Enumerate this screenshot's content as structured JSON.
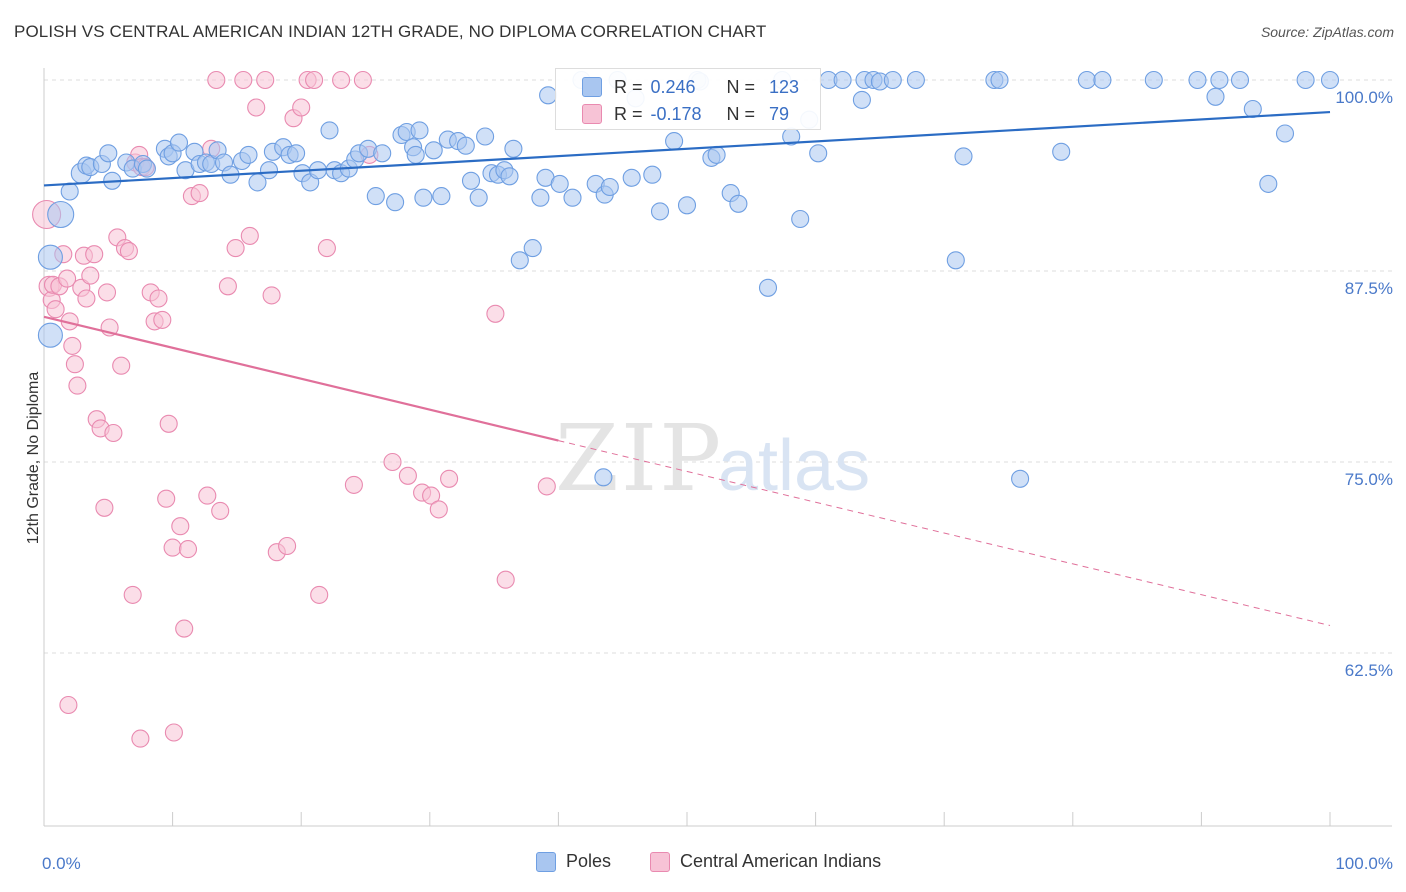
{
  "title": "POLISH VS CENTRAL AMERICAN INDIAN 12TH GRADE, NO DIPLOMA CORRELATION CHART",
  "source": "Source: ZipAtlas.com",
  "watermark": {
    "zip": "ZIP",
    "atlas": "atlas"
  },
  "colors": {
    "blue": "#6f9fe2",
    "blue_fill": "#a9c6f0",
    "blue_line": "#2b6cc4",
    "pink": "#e98ab0",
    "pink_fill": "#f7c3d6",
    "pink_line": "#e0709a",
    "tick_text": "#4a79c9"
  },
  "stats": {
    "rows": [
      {
        "r_label": "R =",
        "r_value": "0.246",
        "n_label": "N =",
        "n_value": "123",
        "color": "blue"
      },
      {
        "r_label": "R =",
        "r_value": "-0.178",
        "n_label": "N =",
        "n_value": "79",
        "color": "pink"
      }
    ]
  },
  "legend": {
    "items": [
      {
        "label": "Poles",
        "color": "blue"
      },
      {
        "label": "Central American Indians",
        "color": "pink"
      }
    ]
  },
  "chart_data": {
    "type": "scatter",
    "title": "POLISH VS CENTRAL AMERICAN INDIAN 12TH GRADE, NO DIPLOMA CORRELATION CHART",
    "xlabel": "",
    "ylabel": "12th Grade, No Diploma",
    "xlim": [
      0,
      100
    ],
    "ylim": [
      50,
      100
    ],
    "x_tick_labels": [
      "0.0%",
      "100.0%"
    ],
    "y_ticks": [
      100,
      87.5,
      75,
      62.5
    ],
    "y_tick_labels": [
      "100.0%",
      "87.5%",
      "75.0%",
      "62.5%"
    ],
    "grid": true,
    "legend_position": "bottom-center",
    "series": [
      {
        "name": "Poles",
        "color": "blue",
        "r": 0.246,
        "n": 123,
        "trend": {
          "x": [
            0,
            100
          ],
          "y": [
            93.1,
            97.9
          ]
        },
        "points": [
          [
            0.5,
            88.4
          ],
          [
            0.5,
            83.3
          ],
          [
            1.3,
            91.2
          ],
          [
            2.0,
            92.7
          ],
          [
            2.9,
            93.9
          ],
          [
            3.3,
            94.4
          ],
          [
            3.6,
            94.3
          ],
          [
            4.5,
            94.5
          ],
          [
            5.0,
            95.2
          ],
          [
            5.3,
            93.4
          ],
          [
            6.4,
            94.6
          ],
          [
            6.9,
            94.2
          ],
          [
            7.7,
            94.5
          ],
          [
            8.0,
            94.2
          ],
          [
            9.4,
            95.5
          ],
          [
            9.7,
            95.0
          ],
          [
            10.0,
            95.2
          ],
          [
            10.5,
            95.9
          ],
          [
            11.0,
            94.1
          ],
          [
            11.7,
            95.3
          ],
          [
            12.1,
            94.5
          ],
          [
            12.6,
            94.6
          ],
          [
            13.0,
            94.5
          ],
          [
            13.5,
            95.4
          ],
          [
            14.0,
            94.6
          ],
          [
            14.5,
            93.8
          ],
          [
            15.4,
            94.7
          ],
          [
            15.9,
            95.1
          ],
          [
            16.6,
            93.3
          ],
          [
            17.5,
            94.1
          ],
          [
            17.8,
            95.3
          ],
          [
            18.6,
            95.6
          ],
          [
            19.1,
            95.1
          ],
          [
            19.6,
            95.2
          ],
          [
            20.1,
            93.9
          ],
          [
            20.7,
            93.3
          ],
          [
            21.3,
            94.1
          ],
          [
            22.2,
            96.7
          ],
          [
            22.6,
            94.1
          ],
          [
            23.1,
            93.9
          ],
          [
            23.7,
            94.2
          ],
          [
            24.2,
            94.8
          ],
          [
            24.5,
            95.2
          ],
          [
            25.2,
            95.5
          ],
          [
            25.8,
            92.4
          ],
          [
            26.3,
            95.2
          ],
          [
            27.3,
            92.0
          ],
          [
            27.8,
            96.4
          ],
          [
            28.2,
            96.6
          ],
          [
            28.7,
            95.6
          ],
          [
            28.9,
            95.1
          ],
          [
            29.2,
            96.7
          ],
          [
            29.5,
            92.3
          ],
          [
            30.3,
            95.4
          ],
          [
            30.9,
            92.4
          ],
          [
            31.4,
            96.1
          ],
          [
            32.2,
            96.0
          ],
          [
            32.8,
            95.7
          ],
          [
            33.2,
            93.4
          ],
          [
            33.8,
            92.3
          ],
          [
            34.3,
            96.3
          ],
          [
            34.8,
            93.9
          ],
          [
            35.3,
            93.8
          ],
          [
            35.8,
            94.1
          ],
          [
            36.2,
            93.7
          ],
          [
            36.5,
            95.5
          ],
          [
            37.0,
            88.2
          ],
          [
            38.0,
            89.0
          ],
          [
            38.6,
            92.3
          ],
          [
            39.0,
            93.6
          ],
          [
            39.2,
            99.0
          ],
          [
            40.1,
            93.2
          ],
          [
            41.1,
            92.3
          ],
          [
            41.8,
            100.0
          ],
          [
            42.9,
            93.2
          ],
          [
            43.6,
            92.5
          ],
          [
            44.0,
            93.0
          ],
          [
            44.6,
            100.0
          ],
          [
            45.7,
            93.6
          ],
          [
            46.0,
            98.8
          ],
          [
            47.3,
            93.8
          ],
          [
            47.9,
            91.4
          ],
          [
            49.0,
            96.0
          ],
          [
            50.0,
            91.8
          ],
          [
            50.8,
            100.0
          ],
          [
            51.0,
            99.9
          ],
          [
            51.9,
            94.9
          ],
          [
            52.3,
            95.1
          ],
          [
            53.4,
            92.6
          ],
          [
            54.0,
            91.9
          ],
          [
            56.3,
            86.4
          ],
          [
            57.4,
            100.0
          ],
          [
            58.1,
            96.3
          ],
          [
            58.8,
            90.9
          ],
          [
            59.5,
            97.4
          ],
          [
            60.2,
            95.2
          ],
          [
            61.0,
            100.0
          ],
          [
            62.1,
            100.0
          ],
          [
            63.6,
            98.7
          ],
          [
            63.8,
            100.0
          ],
          [
            64.5,
            100.0
          ],
          [
            65.0,
            99.9
          ],
          [
            66.0,
            100.0
          ],
          [
            67.8,
            100.0
          ],
          [
            71.5,
            95.0
          ],
          [
            73.9,
            100.0
          ],
          [
            74.3,
            100.0
          ],
          [
            79.1,
            95.3
          ],
          [
            81.1,
            100.0
          ],
          [
            82.3,
            100.0
          ],
          [
            86.3,
            100.0
          ],
          [
            89.7,
            100.0
          ],
          [
            91.1,
            98.9
          ],
          [
            91.4,
            100.0
          ],
          [
            93.0,
            100.0
          ],
          [
            94.0,
            98.1
          ],
          [
            95.2,
            93.2
          ],
          [
            96.5,
            96.5
          ],
          [
            98.1,
            100.0
          ],
          [
            100.0,
            100.0
          ],
          [
            43.5,
            74.0
          ],
          [
            75.9,
            73.9
          ],
          [
            70.9,
            88.2
          ]
        ]
      },
      {
        "name": "Central American Indians",
        "color": "pink",
        "r": -0.178,
        "n": 79,
        "trend": {
          "x": [
            0,
            40
          ],
          "y": [
            84.5,
            76.4
          ]
        },
        "trend_dashed": {
          "x": [
            40,
            100
          ],
          "y": [
            76.4,
            64.3
          ]
        },
        "points": [
          [
            0.2,
            91.2
          ],
          [
            0.4,
            86.5
          ],
          [
            0.6,
            85.6
          ],
          [
            0.7,
            86.6
          ],
          [
            0.9,
            85.0
          ],
          [
            1.2,
            86.5
          ],
          [
            1.5,
            88.6
          ],
          [
            1.8,
            87.0
          ],
          [
            2.0,
            84.2
          ],
          [
            2.2,
            82.6
          ],
          [
            2.4,
            81.4
          ],
          [
            2.6,
            80.0
          ],
          [
            2.9,
            86.4
          ],
          [
            3.1,
            88.5
          ],
          [
            3.3,
            85.7
          ],
          [
            3.6,
            87.2
          ],
          [
            3.9,
            88.6
          ],
          [
            4.1,
            77.8
          ],
          [
            4.4,
            77.2
          ],
          [
            4.7,
            72.0
          ],
          [
            4.9,
            86.1
          ],
          [
            5.1,
            83.8
          ],
          [
            5.4,
            76.9
          ],
          [
            5.7,
            89.7
          ],
          [
            6.0,
            81.3
          ],
          [
            6.3,
            89.0
          ],
          [
            6.6,
            88.8
          ],
          [
            6.9,
            66.3
          ],
          [
            7.1,
            94.6
          ],
          [
            7.4,
            95.1
          ],
          [
            7.6,
            94.3
          ],
          [
            7.9,
            94.3
          ],
          [
            8.3,
            86.1
          ],
          [
            8.6,
            84.2
          ],
          [
            8.9,
            85.7
          ],
          [
            9.2,
            84.3
          ],
          [
            9.5,
            72.6
          ],
          [
            9.7,
            77.5
          ],
          [
            10.0,
            69.4
          ],
          [
            10.6,
            70.8
          ],
          [
            10.9,
            64.1
          ],
          [
            11.2,
            69.3
          ],
          [
            11.5,
            92.4
          ],
          [
            12.1,
            92.6
          ],
          [
            12.7,
            72.8
          ],
          [
            13.0,
            95.5
          ],
          [
            13.4,
            100.0
          ],
          [
            13.7,
            71.8
          ],
          [
            14.3,
            86.5
          ],
          [
            14.9,
            89.0
          ],
          [
            15.5,
            100.0
          ],
          [
            16.0,
            89.8
          ],
          [
            16.5,
            98.2
          ],
          [
            17.2,
            100.0
          ],
          [
            17.7,
            85.9
          ],
          [
            18.1,
            69.1
          ],
          [
            18.9,
            69.5
          ],
          [
            19.4,
            97.5
          ],
          [
            20.0,
            98.2
          ],
          [
            20.5,
            100.0
          ],
          [
            21.0,
            100.0
          ],
          [
            21.4,
            66.3
          ],
          [
            22.0,
            89.0
          ],
          [
            23.1,
            100.0
          ],
          [
            24.1,
            73.5
          ],
          [
            24.8,
            100.0
          ],
          [
            25.3,
            95.1
          ],
          [
            27.1,
            75.0
          ],
          [
            28.3,
            74.1
          ],
          [
            29.4,
            73.0
          ],
          [
            30.1,
            72.8
          ],
          [
            30.7,
            71.9
          ],
          [
            31.5,
            73.9
          ],
          [
            35.1,
            84.7
          ],
          [
            35.9,
            67.3
          ],
          [
            39.1,
            73.4
          ],
          [
            1.9,
            59.1
          ],
          [
            7.5,
            56.9
          ],
          [
            10.1,
            57.3
          ]
        ]
      }
    ]
  }
}
